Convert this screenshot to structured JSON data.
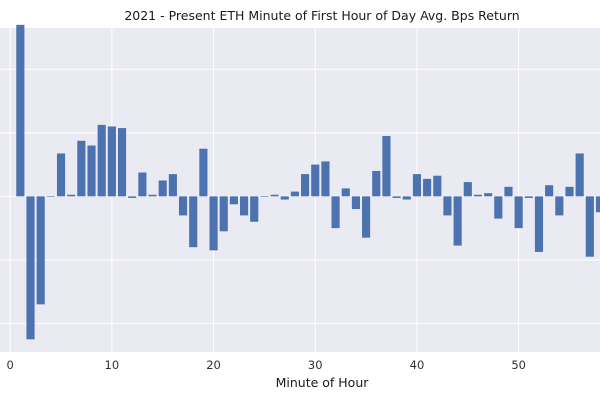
{
  "chart_data": {
    "type": "bar",
    "title": "2021 - Present ETH Minute of First Hour of Day Avg. Bps Return",
    "xlabel": "Minute of Hour",
    "ylabel": "",
    "x_ticks": [
      0,
      10,
      20,
      30,
      40,
      50
    ],
    "xlim": [
      -1,
      58
    ],
    "ylim": [
      -4.9,
      5.3
    ],
    "y_gridlines": [
      -4,
      -2,
      0,
      2,
      4
    ],
    "grid": true,
    "background_color": "#eaeaf2",
    "bar_color": "#4c72b0",
    "x": [
      1,
      2,
      3,
      4,
      5,
      6,
      7,
      8,
      9,
      10,
      11,
      12,
      13,
      14,
      15,
      16,
      17,
      18,
      19,
      20,
      21,
      22,
      23,
      24,
      25,
      26,
      27,
      28,
      29,
      30,
      31,
      32,
      33,
      34,
      35,
      36,
      37,
      38,
      39,
      40,
      41,
      42,
      43,
      44,
      45,
      46,
      47,
      48,
      49,
      50,
      51,
      52,
      53,
      54,
      55,
      56,
      57,
      58
    ],
    "values": [
      5.4,
      -4.5,
      -3.4,
      0.0,
      1.35,
      0.05,
      1.75,
      1.6,
      2.25,
      2.2,
      2.15,
      -0.05,
      0.75,
      0.05,
      0.5,
      0.7,
      -0.6,
      -1.6,
      1.5,
      -1.7,
      -1.1,
      -0.25,
      -0.6,
      -0.8,
      0.0,
      0.05,
      -0.1,
      0.15,
      0.7,
      1.0,
      1.1,
      -1.0,
      0.25,
      -0.4,
      -1.3,
      0.8,
      1.9,
      -0.05,
      -0.1,
      0.7,
      0.55,
      0.65,
      -0.6,
      -1.55,
      0.45,
      0.05,
      0.1,
      -0.7,
      0.3,
      -1.0,
      -0.05,
      -1.75,
      0.35,
      -0.6,
      0.3,
      1.35,
      -1.9,
      -0.5
    ]
  }
}
